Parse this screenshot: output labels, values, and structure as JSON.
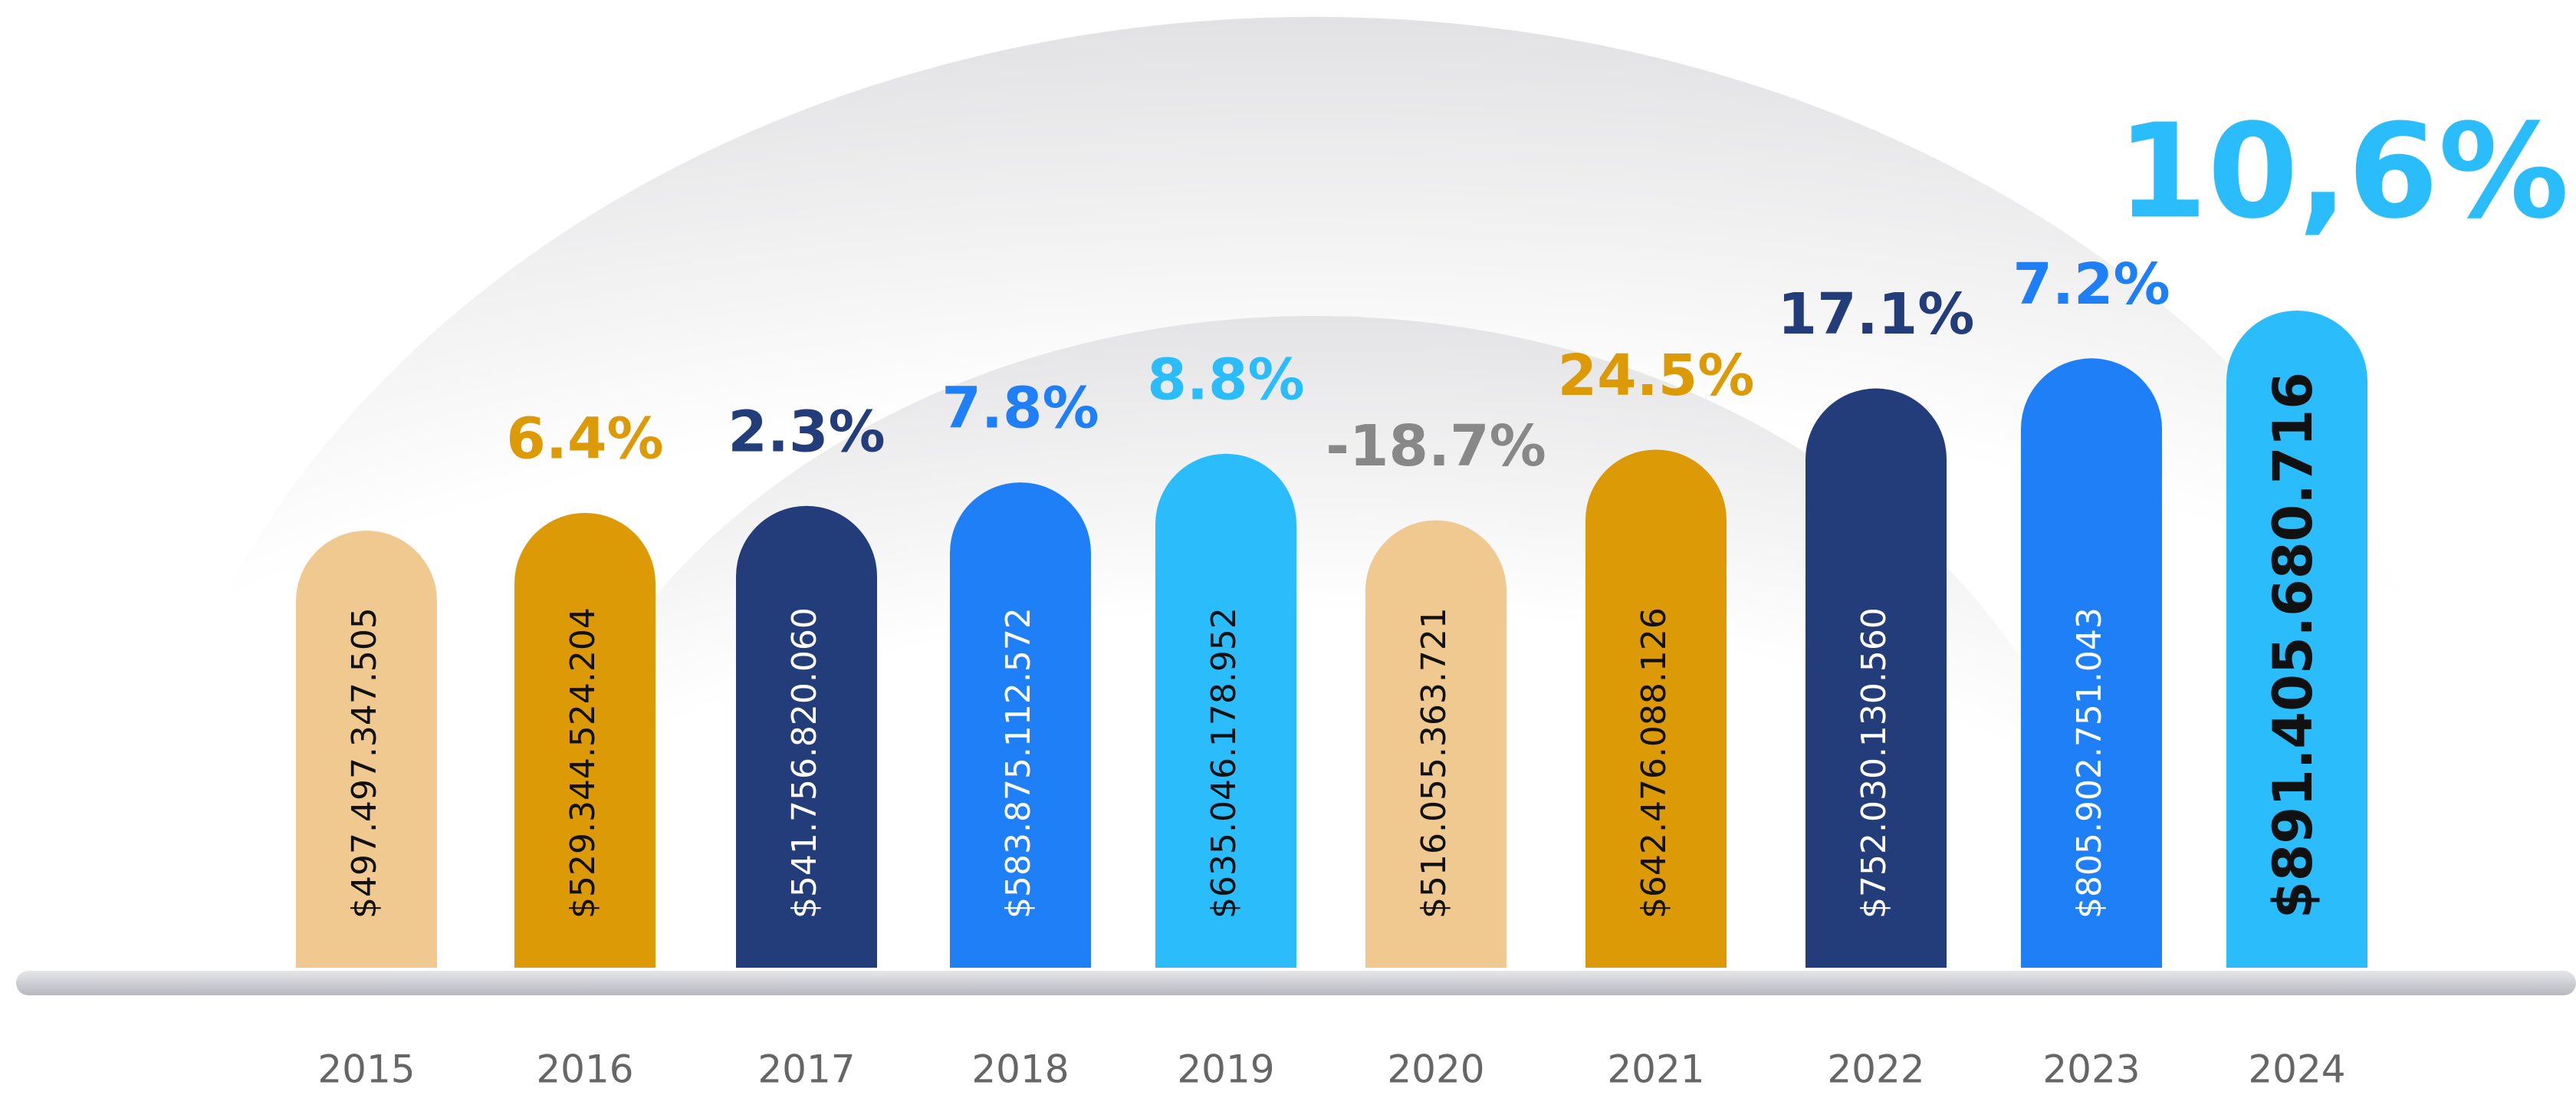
{
  "chart_data": {
    "type": "bar",
    "categories": [
      "2015",
      "2016",
      "2017",
      "2018",
      "2019",
      "2020",
      "2021",
      "2022",
      "2023",
      "2024"
    ],
    "values": [
      497497347505,
      529344524204,
      541756820060,
      583875112572,
      635046178952,
      516055363721,
      642476088126,
      752030130560,
      805902751043,
      891405680716
    ],
    "value_labels": [
      "$497.497.347.505",
      "$529.344.524.204",
      "$541.756.820.060",
      "$583.875.112.572",
      "$635.046.178.952",
      "$516.055.363.721",
      "$642.476.088.126",
      "$752.030.130.560",
      "$805.902.751.043",
      "$891.405.680.716"
    ],
    "colors": [
      "#efc98f",
      "#dc9b06",
      "#233c7a",
      "#1f7ff7",
      "#2bbdfb",
      "#efc98f",
      "#dc9b06",
      "#233c7a",
      "#1f7ff7",
      "#2bbdfb"
    ],
    "label_colors": [
      "#111111",
      "#111111",
      "#ffffff",
      "#ffffff",
      "#111111",
      "#111111",
      "#111111",
      "#ffffff",
      "#ffffff",
      "#111111"
    ],
    "growth": {
      "values": [
        null,
        6.4,
        2.3,
        7.8,
        8.8,
        -18.7,
        24.5,
        17.1,
        7.2,
        10.6
      ],
      "value_labels": [
        null,
        "6.4%",
        "2.3%",
        "7.8%",
        "8.8%",
        "-18.7%",
        "24.5%",
        "17.1%",
        "7.2%",
        "10,6%"
      ],
      "colors": [
        null,
        "#dc9b06",
        "#233c7a",
        "#1f7ff7",
        "#2bbdfb",
        "#888888",
        "#dc9b06",
        "#233c7a",
        "#1f7ff7",
        "#2bbdfb"
      ]
    }
  }
}
